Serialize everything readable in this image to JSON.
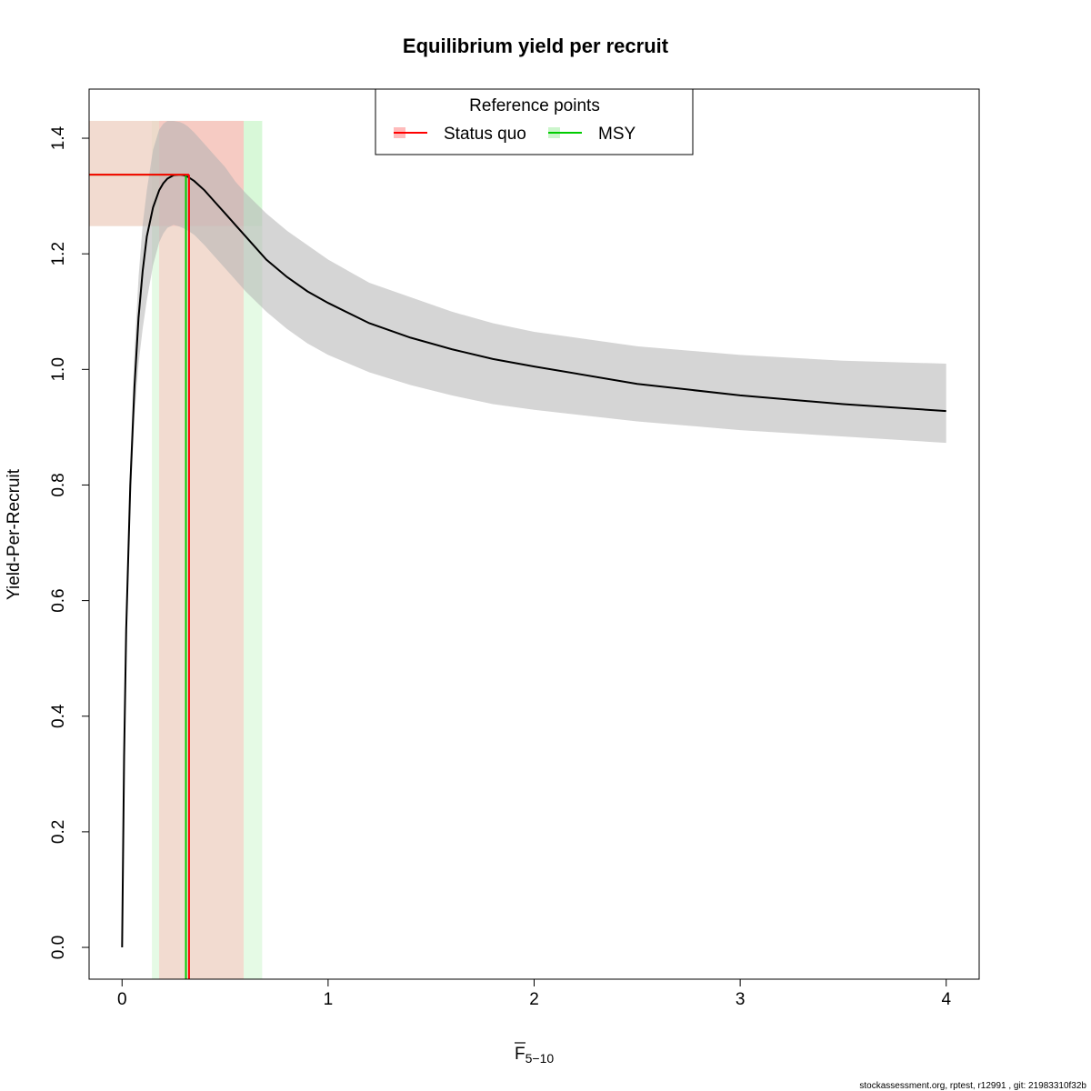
{
  "chart_data": {
    "type": "line",
    "title": "Equilibrium yield per recruit",
    "xlabel": {
      "main": "F",
      "subscript": "5−10"
    },
    "ylabel": "Yield-Per-Recruit",
    "xlim": [
      -0.16,
      4.16
    ],
    "ylim": [
      -0.055,
      1.485
    ],
    "x_ticks": [
      0,
      1,
      2,
      3,
      4
    ],
    "x_tick_labels": [
      "0",
      "1",
      "2",
      "3",
      "4"
    ],
    "y_ticks": [
      0.0,
      0.2,
      0.4,
      0.6,
      0.8,
      1.0,
      1.2,
      1.4
    ],
    "y_tick_labels": [
      "0.0",
      "0.2",
      "0.4",
      "0.6",
      "0.8",
      "1.0",
      "1.2",
      "1.4"
    ],
    "grid": false,
    "series": [
      {
        "x": [
          0,
          0.01,
          0.02,
          0.04,
          0.06,
          0.08,
          0.1,
          0.12,
          0.15,
          0.18,
          0.2,
          0.22,
          0.25,
          0.28,
          0.3,
          0.32,
          0.35,
          0.4,
          0.45,
          0.5,
          0.55,
          0.6,
          0.7,
          0.8,
          0.9,
          1.0,
          1.2,
          1.4,
          1.6,
          1.8,
          2.0,
          2.5,
          3.0,
          3.5,
          4.0
        ],
        "y": [
          0,
          0.33,
          0.55,
          0.8,
          0.97,
          1.09,
          1.17,
          1.23,
          1.28,
          1.31,
          1.322,
          1.33,
          1.336,
          1.337,
          1.336,
          1.333,
          1.326,
          1.31,
          1.29,
          1.27,
          1.25,
          1.23,
          1.19,
          1.16,
          1.135,
          1.115,
          1.08,
          1.055,
          1.035,
          1.018,
          1.005,
          0.975,
          0.955,
          0.94,
          0.928
        ],
        "lower": [
          0,
          0.33,
          0.53,
          0.76,
          0.92,
          1.01,
          1.07,
          1.12,
          1.18,
          1.22,
          1.235,
          1.245,
          1.25,
          1.247,
          1.244,
          1.24,
          1.233,
          1.215,
          1.195,
          1.175,
          1.155,
          1.135,
          1.1,
          1.07,
          1.045,
          1.025,
          0.995,
          0.973,
          0.955,
          0.94,
          0.93,
          0.91,
          0.895,
          0.884,
          0.873
        ],
        "upper": [
          0,
          0.33,
          0.57,
          0.84,
          1.03,
          1.16,
          1.25,
          1.31,
          1.38,
          1.415,
          1.425,
          1.43,
          1.43,
          1.428,
          1.425,
          1.42,
          1.41,
          1.39,
          1.37,
          1.35,
          1.325,
          1.305,
          1.27,
          1.24,
          1.215,
          1.19,
          1.15,
          1.125,
          1.1,
          1.08,
          1.065,
          1.04,
          1.025,
          1.015,
          1.01
        ],
        "color": "#000000",
        "band_color": "#b3b3b3"
      }
    ],
    "reference_points": {
      "legend_title": "Reference points",
      "legend_position": "top-center",
      "items": [
        {
          "name": "Status quo",
          "color": "#ff0000",
          "band_color": "#ffbbbb",
          "f": 0.325,
          "f_low": 0.18,
          "f_high": 0.59,
          "y": 1.337,
          "y_low": 1.248,
          "y_high": 1.43
        },
        {
          "name": "MSY",
          "color": "#00cc00",
          "band_color": "#ccf5cc",
          "f": 0.31,
          "f_low": 0.145,
          "f_high": 0.68,
          "y": 1.337,
          "y_low": 1.248,
          "y_high": 1.43
        }
      ]
    }
  },
  "footer": "stockassessment.org, rptest, r12991 , git: 21983310f32b"
}
